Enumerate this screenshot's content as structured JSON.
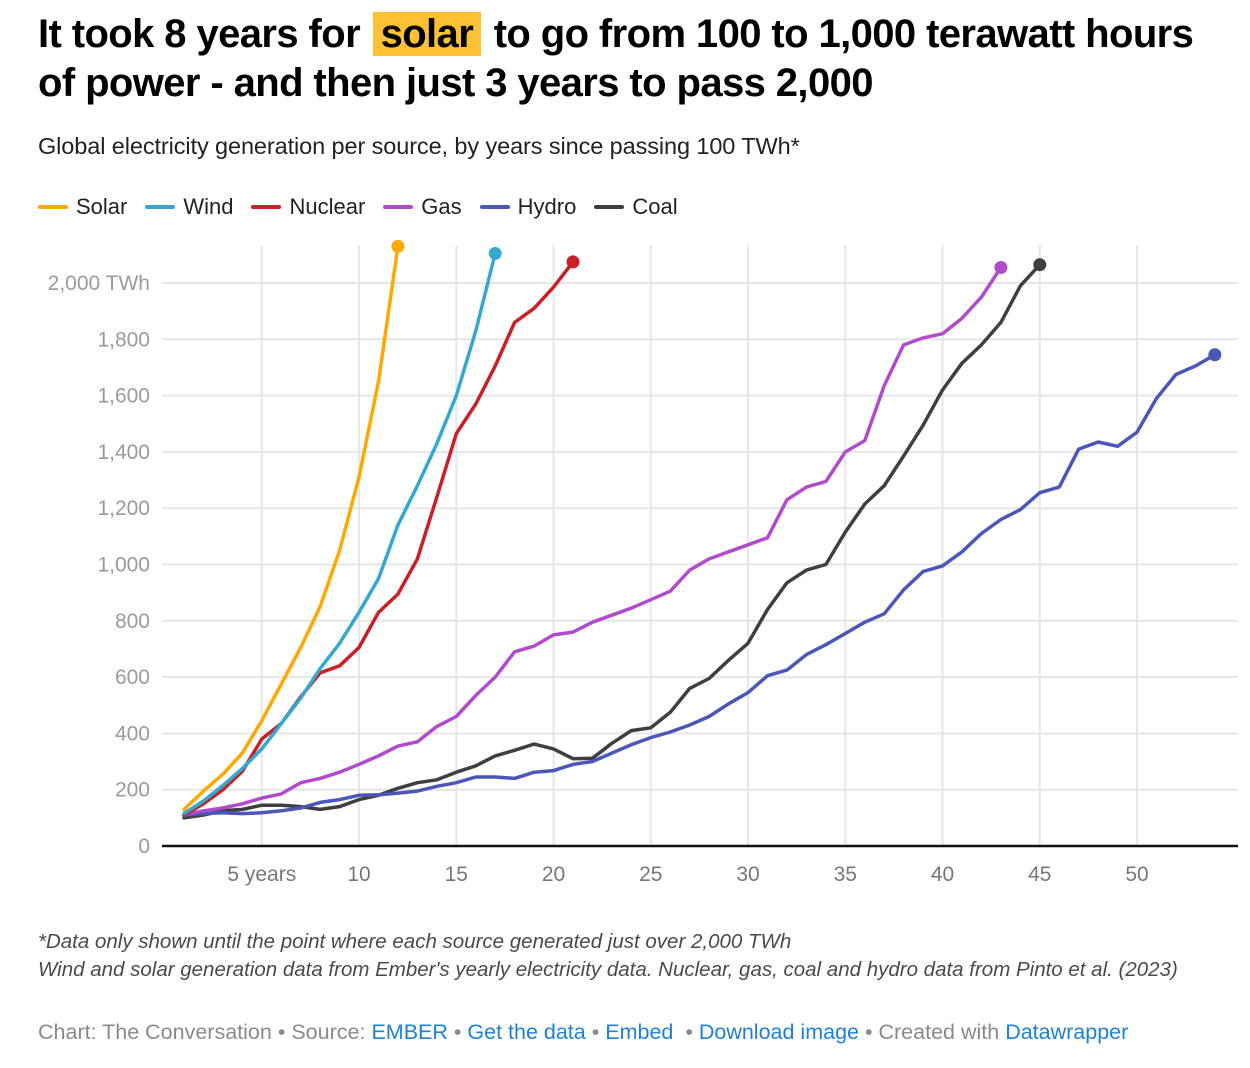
{
  "header": {
    "title_before": "It took 8 years for",
    "title_highlight": "solar",
    "title_after": "to go from 100 to 1,000 terawatt hours of power - and then just 3 years to pass 2,000",
    "highlight_color": "#fdc133",
    "subtitle": "Global electricity generation per source, by years since passing 100 TWh*"
  },
  "legend": [
    {
      "label": "Solar",
      "color": "#ffa800"
    },
    {
      "label": "Wind",
      "color": "#33a8d0"
    },
    {
      "label": "Nuclear",
      "color": "#c91f25"
    },
    {
      "label": "Gas",
      "color": "#b04bcb"
    },
    {
      "label": "Hydro",
      "color": "#4b57b8"
    },
    {
      "label": "Coal",
      "color": "#3f3f42"
    }
  ],
  "chart_data": {
    "type": "line",
    "title": "It took 8 years for solar to go from 100 to 1,000 terawatt hours of power - and then just 3 years to pass 2,000",
    "subtitle": "Global electricity generation per source, by years since passing 100 TWh*",
    "xlabel": "Years since passing 100 TWh",
    "ylabel": "TWh",
    "xlim": [
      1,
      54
    ],
    "ylim": [
      0,
      2000
    ],
    "x_ticks": [
      5,
      10,
      15,
      20,
      25,
      30,
      35,
      40,
      45,
      50
    ],
    "x_tick_labels": [
      "5 years",
      "10",
      "15",
      "20",
      "25",
      "30",
      "35",
      "40",
      "45",
      "50"
    ],
    "y_ticks": [
      0,
      200,
      400,
      600,
      800,
      1000,
      1200,
      1400,
      1600,
      1800,
      2000
    ],
    "y_tick_labels": [
      "0",
      "200",
      "400",
      "600",
      "800",
      "1,000",
      "1,200",
      "1,400",
      "1,600",
      "1,800",
      "2,000 TWh"
    ],
    "grid": true,
    "legend_position": "top-left",
    "end_markers": true,
    "series": [
      {
        "name": "Solar",
        "color": "#ffa800",
        "start_year": 1,
        "values": [
          130,
          195,
          255,
          330,
          445,
          575,
          705,
          850,
          1050,
          1310,
          1650,
          2130
        ]
      },
      {
        "name": "Wind",
        "color": "#33a8d0",
        "start_year": 1,
        "values": [
          115,
          160,
          215,
          275,
          345,
          435,
          525,
          630,
          720,
          830,
          950,
          1140,
          1280,
          1430,
          1600,
          1830,
          2105
        ]
      },
      {
        "name": "Nuclear",
        "color": "#c91f25",
        "start_year": 1,
        "values": [
          110,
          150,
          200,
          265,
          380,
          435,
          530,
          615,
          640,
          705,
          830,
          895,
          1020,
          1240,
          1465,
          1570,
          1705,
          1860,
          1910,
          1985,
          2075
        ]
      },
      {
        "name": "Gas",
        "color": "#b04bcb",
        "start_year": 1,
        "values": [
          110,
          125,
          135,
          150,
          170,
          185,
          225,
          240,
          262,
          290,
          320,
          355,
          370,
          425,
          460,
          535,
          600,
          690,
          710,
          750,
          760,
          795,
          820,
          845,
          875,
          905,
          980,
          1020,
          1045,
          1070,
          1095,
          1230,
          1275,
          1295,
          1400,
          1440,
          1635,
          1780,
          1805,
          1820,
          1875,
          1950,
          2055
        ]
      },
      {
        "name": "Hydro",
        "color": "#4b57b8",
        "start_year": 1,
        "values": [
          110,
          115,
          118,
          115,
          118,
          125,
          135,
          155,
          165,
          180,
          182,
          188,
          195,
          212,
          225,
          245,
          245,
          240,
          262,
          268,
          290,
          300,
          330,
          360,
          385,
          405,
          430,
          460,
          505,
          545,
          605,
          625,
          680,
          715,
          755,
          795,
          825,
          910,
          975,
          995,
          1045,
          1110,
          1160,
          1195,
          1255,
          1275,
          1410,
          1435,
          1420,
          1470,
          1590,
          1675,
          1705,
          1745
        ]
      },
      {
        "name": "Coal",
        "color": "#3f3f42",
        "start_year": 1,
        "values": [
          100,
          110,
          125,
          130,
          145,
          145,
          140,
          130,
          140,
          165,
          180,
          205,
          225,
          235,
          262,
          285,
          320,
          340,
          362,
          345,
          310,
          312,
          365,
          410,
          420,
          475,
          560,
          595,
          660,
          720,
          840,
          935,
          980,
          1000,
          1115,
          1215,
          1280,
          1385,
          1495,
          1620,
          1715,
          1780,
          1860,
          1990,
          2065
        ]
      }
    ]
  },
  "footer": {
    "note_1": "*Data only shown until the point where each source generated just over 2,000 TWh",
    "note_2": "Wind and solar generation data from Ember's yearly electricity data. Nuclear, gas, coal and hydro data from Pinto et al. (2023)",
    "credit_prefix": "Chart: The Conversation",
    "source_label": "Source:",
    "source_link": "EMBER",
    "get_data_link": "Get the data",
    "embed_link": "Embed",
    "download_link": "Download image",
    "created_with": "Created with",
    "datawrapper_link": "Datawrapper",
    "separator": "•"
  }
}
